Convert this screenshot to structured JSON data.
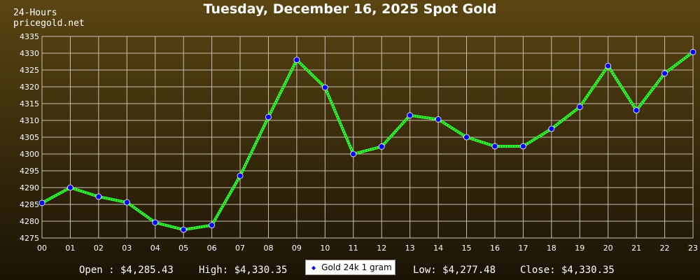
{
  "header": {
    "period": "24-Hours",
    "site": "pricegold.net"
  },
  "chart_data": {
    "type": "line",
    "title": "Tuesday, December 16, 2025 Spot Gold",
    "categories": [
      "00",
      "01",
      "02",
      "03",
      "04",
      "05",
      "06",
      "07",
      "08",
      "09",
      "10",
      "11",
      "12",
      "13",
      "14",
      "15",
      "16",
      "17",
      "18",
      "19",
      "20",
      "21",
      "22",
      "23"
    ],
    "series": [
      {
        "name": "Gold 24k 1 gram",
        "values": [
          4285.43,
          4290.0,
          4287.3,
          4285.6,
          4279.6,
          4277.48,
          4278.8,
          4293.5,
          4311.0,
          4328.0,
          4319.8,
          4300.0,
          4302.2,
          4311.5,
          4310.3,
          4305.0,
          4302.3,
          4302.3,
          4307.5,
          4314.0,
          4326.2,
          4313.0,
          4324.0,
          4330.35
        ]
      }
    ],
    "ylim": [
      4275,
      4335
    ],
    "yticks": [
      4275,
      4280,
      4285,
      4290,
      4295,
      4300,
      4305,
      4310,
      4315,
      4320,
      4325,
      4330,
      4335
    ],
    "grid": true,
    "colors": {
      "line": "#33ff33",
      "line_dots": "#117711",
      "marker": "#0000ff",
      "grid": "#c8c0ae"
    }
  },
  "footer": {
    "open": "Open : $4,285.43",
    "high": "High: $4,330.35",
    "legend_label": "Gold 24k 1 gram",
    "low": "Low: $4,277.48",
    "close": "Close: $4,330.35"
  }
}
